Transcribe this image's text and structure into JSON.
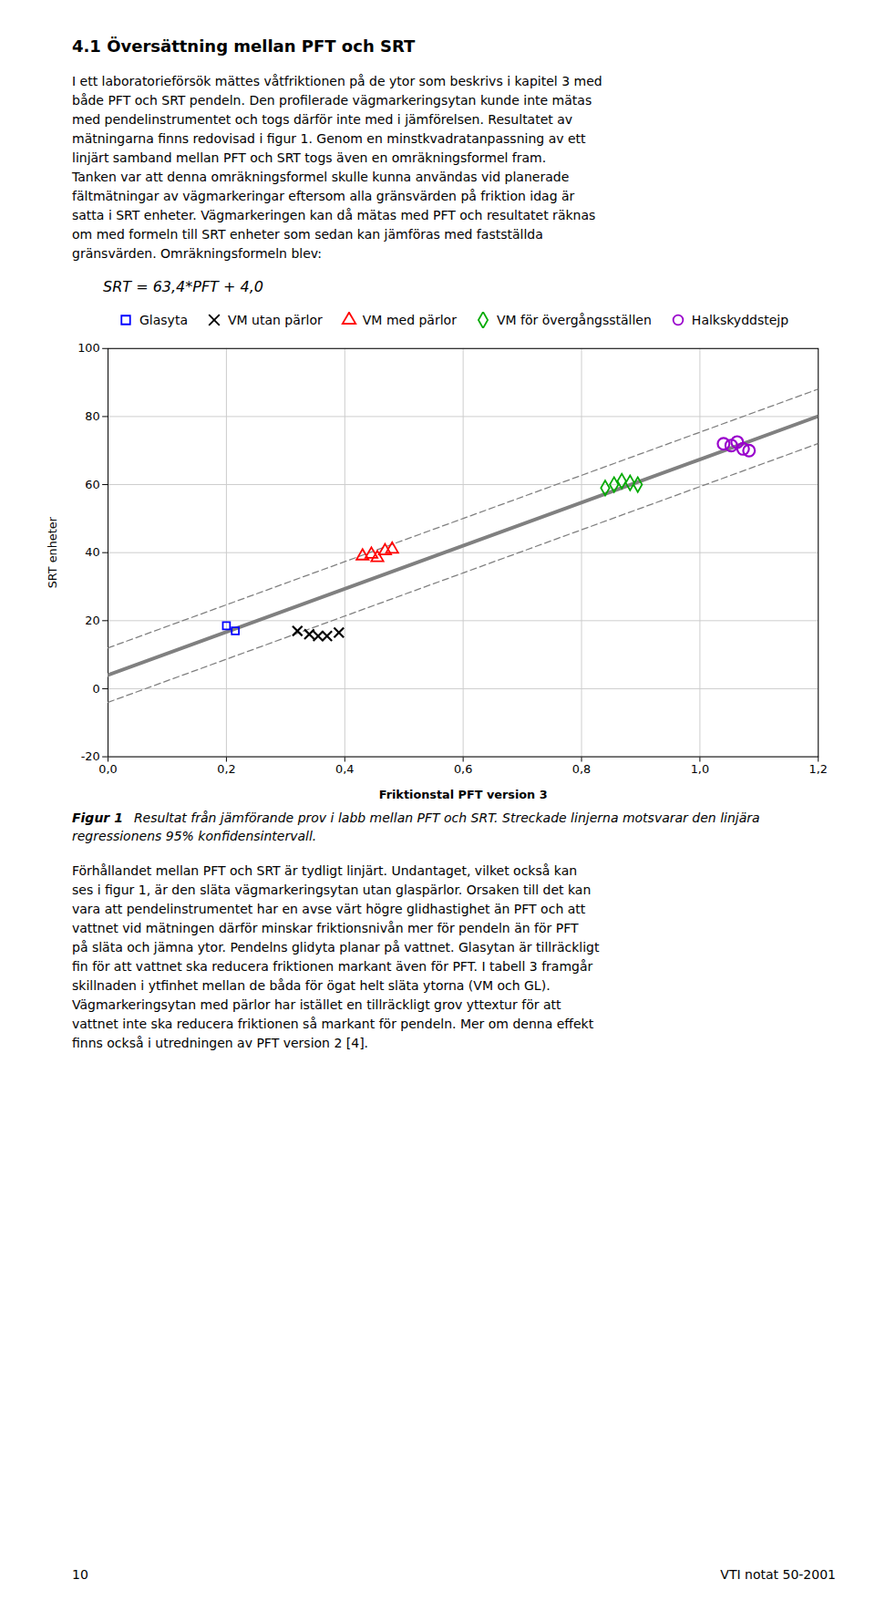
{
  "chart_data": {
    "type": "scatter",
    "title": "4.1   Översättning mellan PFT och SRT",
    "body_text_1": [
      "I ett laboratorieförsök mättes våtfriktionen på de ytor som beskrivs i kapitel 3 med",
      "både PFT och SRT pendeln. Den profilerade vägmarkeringsytan kunde inte mätas",
      "med pendelinstrumentet och togs därför inte med i jämförelsen. Resultatet av",
      "mätningarna finns redovisad i figur 1. Genom en minstkvadratanpassning av ett",
      "linjärt samband mellan PFT och SRT togs även en omräkningsformel fram.",
      "Tanken var att denna omräkningsformel skulle kunna användas vid planerade",
      "fältmätningar av vägmarkeringar eftersom alla gränsvärden på friktion idag är",
      "satta i SRT enheter. Vägmarkeringen kan då mätas med PFT och resultatet räknas",
      "om med formeln till SRT enheter som sedan kan jämföras med fastställda",
      "gränsvärden. Omräkningsformeln blev:"
    ],
    "formula": "SRT = 63,4*PFT + 4,0",
    "xlabel": "Friktionstal PFT version 3",
    "ylabel": "SRT enheter",
    "xlim": [
      0.0,
      1.2
    ],
    "ylim": [
      -20,
      100
    ],
    "xticks": [
      {
        "value": 0.0,
        "label": "0,0"
      },
      {
        "value": 0.2,
        "label": "0,2"
      },
      {
        "value": 0.4,
        "label": "0,4"
      },
      {
        "value": 0.6,
        "label": "0,6"
      },
      {
        "value": 0.8,
        "label": "0,8"
      },
      {
        "value": 1.0,
        "label": "1,0"
      },
      {
        "value": 1.2,
        "label": "1,2"
      }
    ],
    "yticks": [
      -20,
      0,
      20,
      40,
      60,
      80,
      100
    ],
    "grid": true,
    "legend": "upper left",
    "series": [
      {
        "name": "Glasyta",
        "color": "#0000FF",
        "marker": "square",
        "x": [
          0.2,
          0.215
        ],
        "values": [
          18.5,
          17.0
        ]
      },
      {
        "name": "VM utan pärlor",
        "color": "#000000",
        "marker": "x",
        "x": [
          0.32,
          0.34,
          0.355,
          0.37,
          0.39
        ],
        "values": [
          17.0,
          16.0,
          15.5,
          15.5,
          16.5
        ]
      },
      {
        "name": "VM med pärlor",
        "color": "#FF0000",
        "marker": "triangle",
        "x": [
          0.43,
          0.445,
          0.455,
          0.468,
          0.48
        ],
        "values": [
          39.0,
          39.5,
          38.5,
          40.5,
          41.0
        ]
      },
      {
        "name": "VM för övergångsställen",
        "color": "#00AA00",
        "marker": "diamond",
        "x": [
          0.84,
          0.855,
          0.868,
          0.882,
          0.895
        ],
        "values": [
          59.0,
          60.0,
          61.0,
          60.5,
          60.0
        ]
      },
      {
        "name": "Halkskyddstejp",
        "color": "#9900CC",
        "marker": "circle",
        "x": [
          1.04,
          1.053,
          1.063,
          1.073,
          1.083
        ],
        "values": [
          72.0,
          71.5,
          72.5,
          70.5,
          70.0
        ]
      }
    ],
    "lines": [
      {
        "type": "line",
        "color": "#808080",
        "line_style": "solid",
        "x": [
          0.0,
          1.2
        ],
        "values": [
          4.0,
          80.08
        ]
      },
      {
        "type": "line",
        "color": "#808080",
        "line_style": "dashed",
        "x": [
          0.0,
          1.2
        ],
        "values": [
          12.0,
          88.08
        ]
      },
      {
        "type": "line",
        "color": "#808080",
        "line_style": "dashed",
        "x": [
          0.0,
          1.2
        ],
        "values": [
          -4.0,
          72.08
        ]
      }
    ],
    "caption_label": "Figur 1",
    "caption": "Resultat från jämförande prov i labb mellan PFT och SRT. Streckade linjerna motsvarar den linjära regressionens 95% konfidensintervall.",
    "body_text_2": [
      "Förhållandet mellan PFT och SRT är tydligt linjärt. Undantaget, vilket också kan",
      "ses i figur 1, är den släta vägmarkeringsytan utan glaspärlor. Orsaken till det kan",
      "vara att pendelinstrumentet har en avse värt högre glidhastighet än PFT och att",
      "vattnet vid mätningen därför minskar friktionsnivån mer för pendeln än för PFT",
      "på släta och jämna ytor. Pendelns glidyta planar på vattnet. Glasytan är tillräckligt",
      "fin för att vattnet ska reducera friktionen markant även för PFT. I tabell 3 framgår",
      "skillnaden i ytfinhet mellan de båda för ögat helt släta ytorna (VM och GL).",
      "Vägmarkeringsytan med pärlor har istället en tillräckligt grov yttextur för att",
      "vattnet inte ska reducera friktionen så markant för pendeln. Mer om denna effekt",
      "finns också i utredningen av PFT version 2 [4]."
    ],
    "footer_left": "10",
    "footer_right": "VTI notat 50-2001"
  }
}
